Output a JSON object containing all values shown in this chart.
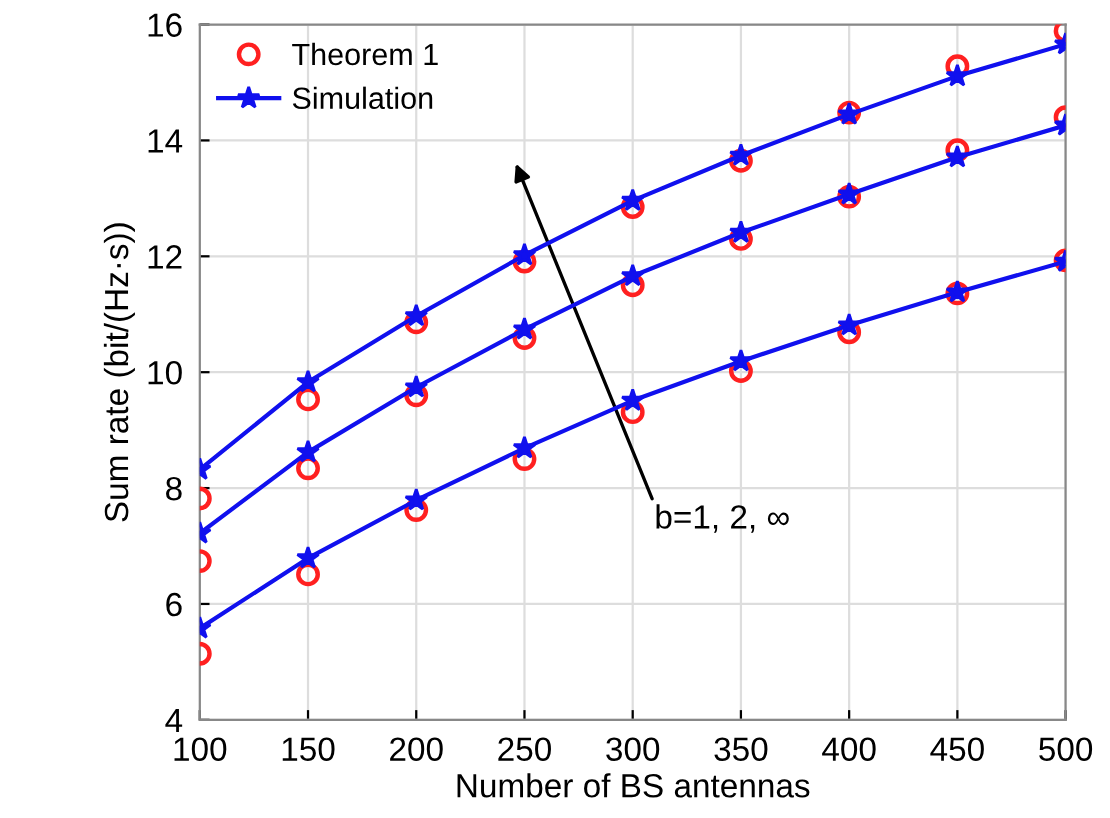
{
  "chart_data": {
    "type": "line",
    "xlabel": "Number of BS antennas",
    "ylabel": "Sum rate (bit/(Hz·s))",
    "x": [
      100,
      150,
      200,
      250,
      300,
      350,
      400,
      450,
      500
    ],
    "xlim": [
      100,
      500
    ],
    "xticks": [
      100,
      150,
      200,
      250,
      300,
      350,
      400,
      450,
      500
    ],
    "ylim": [
      4,
      16
    ],
    "yticks": [
      4,
      6,
      8,
      10,
      12,
      14,
      16
    ],
    "grid": true,
    "legend": "top left",
    "annotations": [
      "b=1, 2, ∞"
    ],
    "series": [
      {
        "name": "Theorem 1",
        "type": "scatter",
        "marker": "circle",
        "color": "#ff2020",
        "values": [
          7.82,
          9.53,
          10.86,
          11.91,
          12.85,
          13.65,
          14.48,
          15.28,
          15.89
        ]
      },
      {
        "name": "Simulation",
        "marker": "star",
        "color": "#1010ee",
        "values": [
          8.32,
          9.83,
          10.97,
          12.02,
          12.96,
          13.74,
          14.45,
          15.11,
          15.66
        ]
      },
      {
        "type": "scatter",
        "marker": "circle",
        "color": "#ff2020",
        "values": [
          6.74,
          8.34,
          9.6,
          10.59,
          11.5,
          12.3,
          13.03,
          13.83,
          14.4
        ]
      },
      {
        "marker": "star",
        "color": "#1010ee",
        "values": [
          7.22,
          8.62,
          9.74,
          10.74,
          11.66,
          12.41,
          13.07,
          13.71,
          14.26
        ]
      },
      {
        "type": "scatter",
        "marker": "circle",
        "color": "#ff2020",
        "values": [
          5.14,
          6.51,
          7.62,
          8.5,
          9.31,
          10.02,
          10.69,
          11.36,
          11.93
        ]
      },
      {
        "marker": "star",
        "color": "#1010ee",
        "values": [
          5.58,
          6.79,
          7.79,
          8.69,
          9.51,
          10.19,
          10.81,
          11.38,
          11.91
        ]
      }
    ]
  }
}
